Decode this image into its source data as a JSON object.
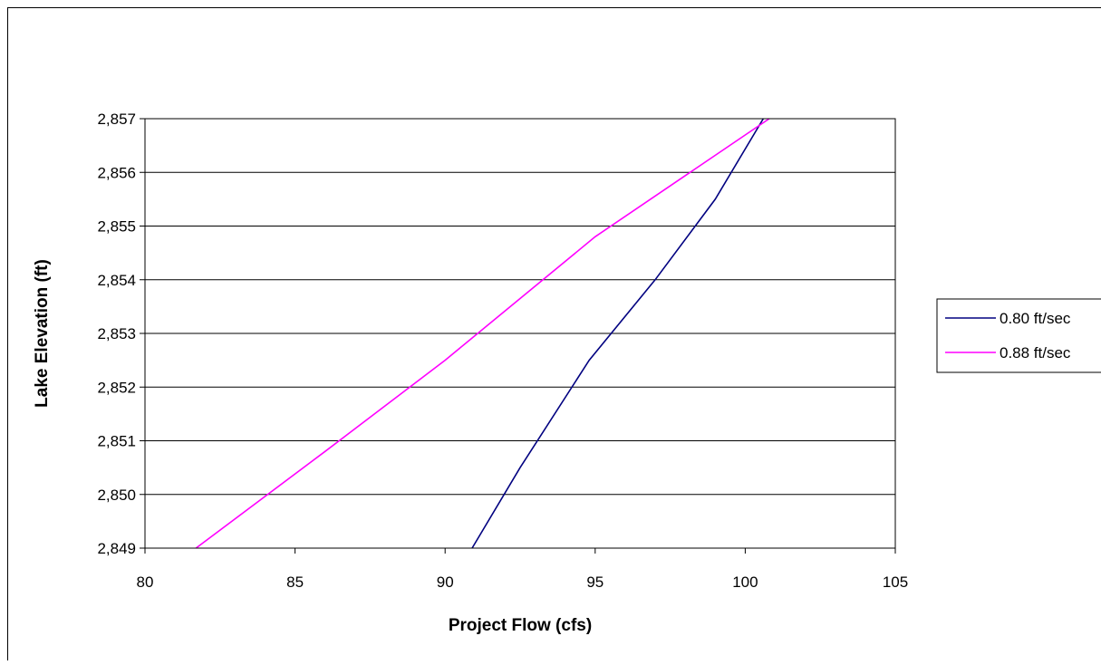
{
  "chart_data": {
    "type": "line",
    "title": "",
    "xlabel": "Project Flow (cfs)",
    "ylabel": "Lake Elevation (ft)",
    "xlim": [
      80,
      105
    ],
    "ylim": [
      2849,
      2857
    ],
    "x_ticks": [
      80,
      85,
      90,
      95,
      100,
      105
    ],
    "x_tick_labels": [
      "80",
      "85",
      "90",
      "95",
      "100",
      "105"
    ],
    "y_ticks": [
      2849,
      2850,
      2851,
      2852,
      2853,
      2854,
      2855,
      2856,
      2857
    ],
    "y_tick_labels": [
      "2,849",
      "2,850",
      "2,851",
      "2,852",
      "2,853",
      "2,854",
      "2,855",
      "2,856",
      "2,857"
    ],
    "grid": "horizontal",
    "legend_position": "right",
    "series": [
      {
        "name": "0.80 ft/sec",
        "color": "#000080",
        "points": [
          [
            90.9,
            2849
          ],
          [
            92.5,
            2850.5
          ],
          [
            94.8,
            2852.5
          ],
          [
            97.0,
            2854
          ],
          [
            99.0,
            2855.5
          ],
          [
            100.6,
            2857
          ]
        ]
      },
      {
        "name": "0.88 ft/sec",
        "color": "#ff00ff",
        "points": [
          [
            81.7,
            2849
          ],
          [
            86.0,
            2850.8
          ],
          [
            90.0,
            2852.5
          ],
          [
            95.0,
            2854.8
          ],
          [
            100.8,
            2857
          ]
        ]
      }
    ]
  }
}
